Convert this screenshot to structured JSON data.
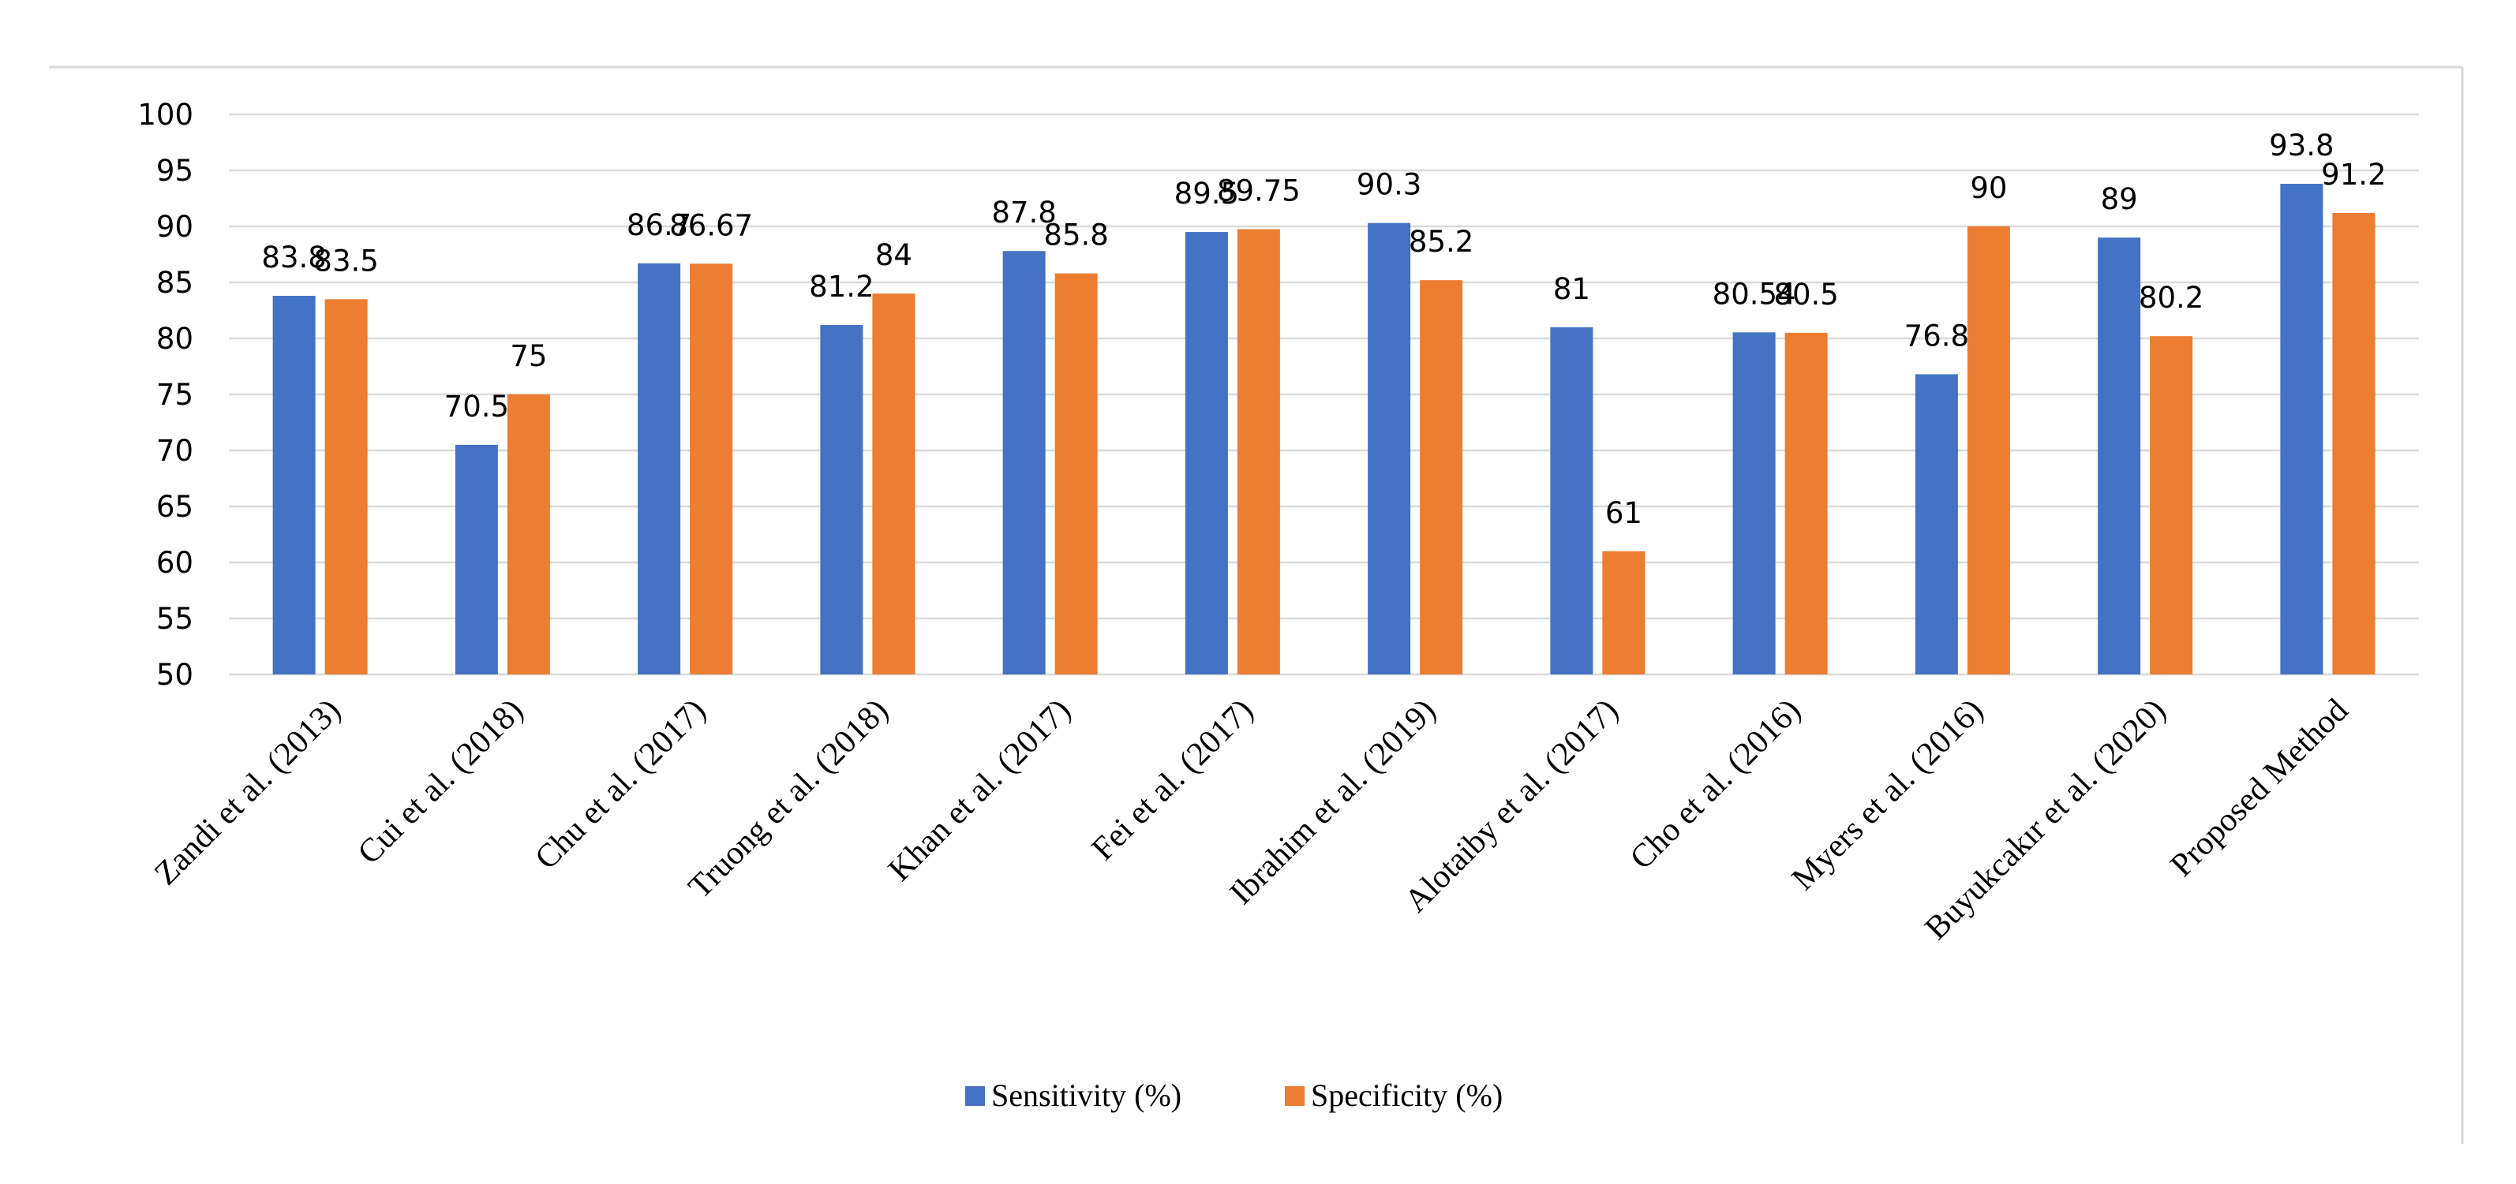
{
  "chart_data": {
    "type": "bar",
    "title": "",
    "xlabel": "",
    "ylabel": "",
    "ylim": [
      50,
      100
    ],
    "ytick_step": 5,
    "grid": true,
    "legend_position": "bottom",
    "categories": [
      "Zandi et al. (2013)",
      "Cui et al. (2018)",
      "Chu et al. (2017)",
      "Truong et al. (2018)",
      "Khan et al. (2017)",
      "Fei et al. (2017)",
      "Ibrahim et al. (2019)",
      "Alotaiby et al. (2017)",
      "Cho et al. (2016)",
      "Myers et al. (2016)",
      "Buyukcakır et al. (2020)",
      "Proposed Method"
    ],
    "series": [
      {
        "name": "Sensitivity (%)",
        "color": "#4472c4",
        "values": [
          83.8,
          70.5,
          86.7,
          81.2,
          87.8,
          89.5,
          90.3,
          81,
          80.54,
          76.8,
          89,
          93.8
        ],
        "labels": [
          "83.8",
          "70.5",
          "86.7",
          "81.2",
          "87.8",
          "89.5",
          "90.3",
          "81",
          "80.54",
          "76.8",
          "89",
          "93.8"
        ]
      },
      {
        "name": "Specificity (%)",
        "color": "#ed7d31",
        "values": [
          83.5,
          75,
          86.67,
          84,
          85.8,
          89.75,
          85.2,
          61,
          80.5,
          90,
          80.2,
          91.2
        ],
        "labels": [
          "83.5",
          "75",
          "86.67",
          "84",
          "85.8",
          "89.75",
          "85.2",
          "61",
          "80.5",
          "90",
          "80.2",
          "91.2"
        ]
      }
    ]
  }
}
